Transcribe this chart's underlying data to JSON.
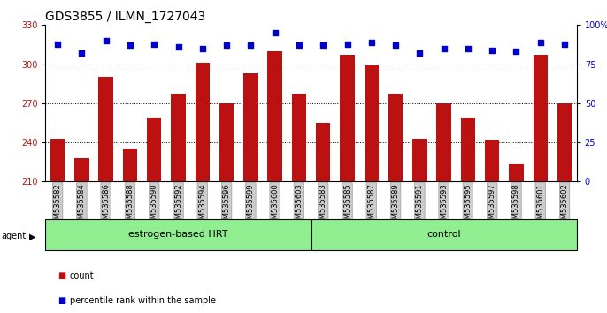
{
  "title": "GDS3855 / ILMN_1727043",
  "samples": [
    "GSM535582",
    "GSM535584",
    "GSM535586",
    "GSM535588",
    "GSM535590",
    "GSM535592",
    "GSM535594",
    "GSM535596",
    "GSM535599",
    "GSM535600",
    "GSM535603",
    "GSM535583",
    "GSM535585",
    "GSM535587",
    "GSM535589",
    "GSM535591",
    "GSM535593",
    "GSM535595",
    "GSM535597",
    "GSM535598",
    "GSM535601",
    "GSM535602"
  ],
  "counts": [
    243,
    228,
    290,
    235,
    259,
    277,
    301,
    270,
    293,
    310,
    277,
    255,
    307,
    299,
    277,
    243,
    270,
    259,
    242,
    224,
    307,
    270
  ],
  "percentile_ranks": [
    88,
    82,
    90,
    87,
    88,
    86,
    85,
    87,
    87,
    95,
    87,
    87,
    88,
    89,
    87,
    82,
    85,
    85,
    84,
    83,
    89,
    88
  ],
  "bar_color": "#BB1111",
  "dot_color": "#0000CC",
  "ylim_left": [
    210,
    330
  ],
  "ylim_right": [
    0,
    100
  ],
  "yticks_left": [
    210,
    240,
    270,
    300,
    330
  ],
  "yticks_right": [
    0,
    25,
    50,
    75,
    100
  ],
  "grid_values": [
    240,
    270,
    300
  ],
  "group1_label": "estrogen-based HRT",
  "group2_label": "control",
  "group1_count": 11,
  "group2_count": 11,
  "group_color": "#90EE90",
  "background_color": "#ffffff",
  "title_fontsize": 10,
  "tick_fontsize": 7,
  "label_fontsize": 8,
  "legend_label_count": "count",
  "legend_label_pct": "percentile rank within the sample"
}
